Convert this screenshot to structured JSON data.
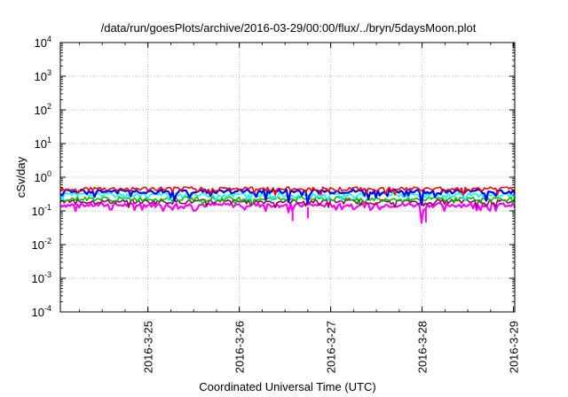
{
  "chart_data": {
    "type": "line",
    "title": "/data/run/goesPlots/archive/2016-03-29/00:00/flux/../bryn/5daysMoon.plot",
    "xlabel": "Coordinated Universal Time (UTC)",
    "ylabel": "cSv/day",
    "yscale": "log",
    "ylim": [
      0.0001,
      10000
    ],
    "xlim": [
      "2016-03-24T01:00",
      "2016-03-29T00:20"
    ],
    "y_ticks": [
      {
        "value": 0.0001,
        "base": "10",
        "exp": "-4"
      },
      {
        "value": 0.001,
        "base": "10",
        "exp": "-3"
      },
      {
        "value": 0.01,
        "base": "10",
        "exp": "-2"
      },
      {
        "value": 0.1,
        "base": "10",
        "exp": "-1"
      },
      {
        "value": 1,
        "base": "10",
        "exp": "0"
      },
      {
        "value": 10,
        "base": "10",
        "exp": "1"
      },
      {
        "value": 100,
        "base": "10",
        "exp": "2"
      },
      {
        "value": 1000,
        "base": "10",
        "exp": "3"
      },
      {
        "value": 10000,
        "base": "10",
        "exp": "4"
      }
    ],
    "x_ticks": [
      {
        "value": "2016-03-25T00:00",
        "label": "2016-3-25"
      },
      {
        "value": "2016-03-26T00:00",
        "label": "2016-3-26"
      },
      {
        "value": "2016-03-27T00:00",
        "label": "2016-3-27"
      },
      {
        "value": "2016-03-28T00:00",
        "label": "2016-3-28"
      },
      {
        "value": "2016-03-29T00:00",
        "label": "2016-3-29"
      }
    ],
    "grid": true,
    "legend": "none",
    "series": [
      {
        "color": "#ff00ff",
        "mean": 0.15,
        "min_dips": [
          {
            "x": "2016-03-24T05:00",
            "y": 0.1
          },
          {
            "x": "2016-03-24T14:00",
            "y": 0.11
          },
          {
            "x": "2016-03-25T12:00",
            "y": 0.1
          },
          {
            "x": "2016-03-26T14:00",
            "y": 0.1
          },
          {
            "x": "2016-03-26T13:00",
            "y": 0.09
          },
          {
            "x": "2016-03-27T13:00",
            "y": 0.11
          },
          {
            "x": "2016-03-28T00:00",
            "y": 0.045
          },
          {
            "x": "2016-03-28T06:00",
            "y": 0.1
          },
          {
            "x": "2016-03-28T18:00",
            "y": 0.1
          }
        ]
      },
      {
        "color": "#8b0a50",
        "mean": 0.19,
        "min_dips": []
      },
      {
        "color": "#00c000",
        "mean": 0.23,
        "min_dips": []
      },
      {
        "color": "#00ffff",
        "mean": 0.3,
        "min_dips": []
      },
      {
        "color": "#0000ff",
        "mean": 0.38,
        "min_dips": [
          {
            "x": "2016-03-25T07:00",
            "y": 0.2
          },
          {
            "x": "2016-03-26T07:00",
            "y": 0.22
          },
          {
            "x": "2016-03-26T13:00",
            "y": 0.18
          },
          {
            "x": "2016-03-26T18:00",
            "y": 0.17
          },
          {
            "x": "2016-03-27T10:00",
            "y": 0.22
          },
          {
            "x": "2016-03-28T00:00",
            "y": 0.15
          },
          {
            "x": "2016-03-28T17:00",
            "y": 0.2
          }
        ]
      },
      {
        "color": "#ff0000",
        "mean": 0.45,
        "min_dips": []
      }
    ],
    "extra_dips": [
      {
        "x": "2016-03-26T14:00",
        "y": 0.05
      },
      {
        "x": "2016-03-26T18:00",
        "y": 0.06
      },
      {
        "x": "2016-03-28T01:00",
        "y": 0.045
      }
    ]
  }
}
